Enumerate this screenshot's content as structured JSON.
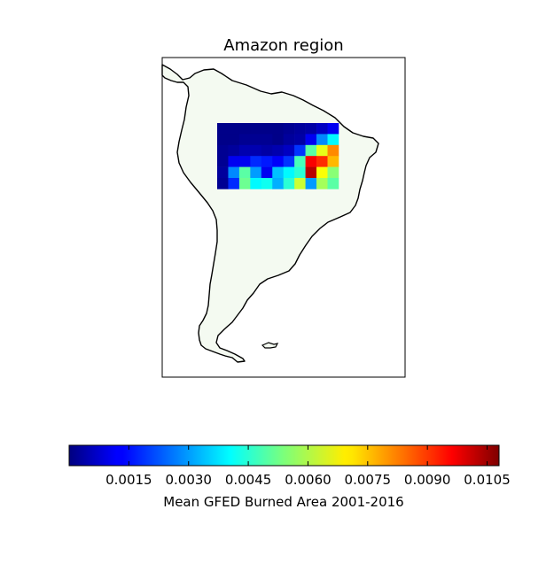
{
  "chart_data": {
    "type": "heatmap",
    "title": "Amazon region",
    "colorbar": {
      "label": "Mean GFED Burned Area 2001-2016",
      "colormap": "jet",
      "vmin": 0.0,
      "vmax": 0.0108,
      "tick_values": [
        0.0015,
        0.003,
        0.0045,
        0.006,
        0.0075,
        0.009,
        0.0105
      ],
      "tick_labels": [
        "0.0015",
        "0.0030",
        "0.0045",
        "0.0060",
        "0.0075",
        "0.0090",
        "0.0105"
      ]
    },
    "grid": {
      "rows": 6,
      "cols": 11,
      "values": [
        [
          0.0001,
          0.0001,
          0.0001,
          0.0001,
          0.0001,
          0.0001,
          0.0002,
          0.0003,
          0.0004,
          0.0007,
          0.0012
        ],
        [
          0.0001,
          0.0001,
          0.0002,
          0.0002,
          0.0002,
          0.0001,
          0.0003,
          0.0004,
          0.0012,
          0.0028,
          0.004
        ],
        [
          0.0002,
          0.0003,
          0.0005,
          0.0005,
          0.0004,
          0.0005,
          0.0007,
          0.0019,
          0.005,
          0.0065,
          0.008
        ],
        [
          0.0002,
          0.0012,
          0.0012,
          0.0018,
          0.0016,
          0.0013,
          0.0019,
          0.0048,
          0.0095,
          0.009,
          0.0075
        ],
        [
          0.0003,
          0.0028,
          0.005,
          0.003,
          0.0012,
          0.0034,
          0.004,
          0.0045,
          0.0102,
          0.0067,
          0.0055
        ],
        [
          0.0002,
          0.0018,
          0.0052,
          0.004,
          0.0042,
          0.0032,
          0.0045,
          0.0062,
          0.003,
          0.0058,
          0.005
        ]
      ]
    }
  }
}
